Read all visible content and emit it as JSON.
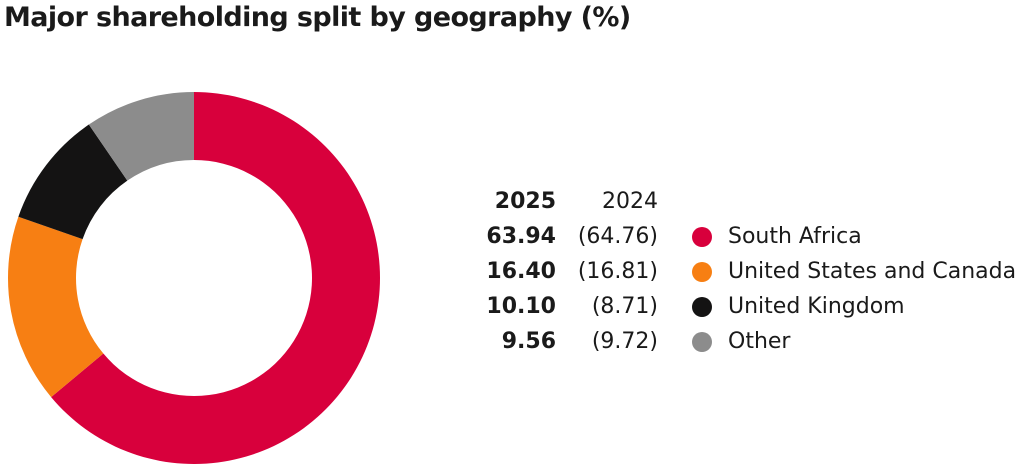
{
  "title": "Major shareholding split by geography (%)",
  "legend": {
    "current_year": "2025",
    "previous_year": "2024"
  },
  "chart_data": {
    "type": "pie",
    "title": "Major shareholding split by geography (%)",
    "donut": true,
    "legend_placement": "right",
    "series": [
      {
        "name": "2025",
        "values": [
          63.94,
          16.4,
          10.1,
          9.56
        ]
      },
      {
        "name": "2024",
        "values": [
          64.76,
          16.81,
          8.71,
          9.72
        ]
      }
    ],
    "categories": [
      "South Africa",
      "United States and Canada",
      "United Kingdom",
      "Other"
    ],
    "colors": [
      "#d8003c",
      "#f77f13",
      "#141313",
      "#8c8c8c"
    ],
    "rows": [
      {
        "category": "South Africa",
        "current": "63.94",
        "previous": "(64.76)",
        "color": "#d8003c"
      },
      {
        "category": "United States and Canada",
        "current": "16.40",
        "previous": "(16.81)",
        "color": "#f77f13"
      },
      {
        "category": "United Kingdom",
        "current": "10.10",
        "previous": "(8.71)",
        "color": "#141313"
      },
      {
        "category": "Other",
        "current": "9.56",
        "previous": "(9.72)",
        "color": "#8c8c8c"
      }
    ]
  }
}
